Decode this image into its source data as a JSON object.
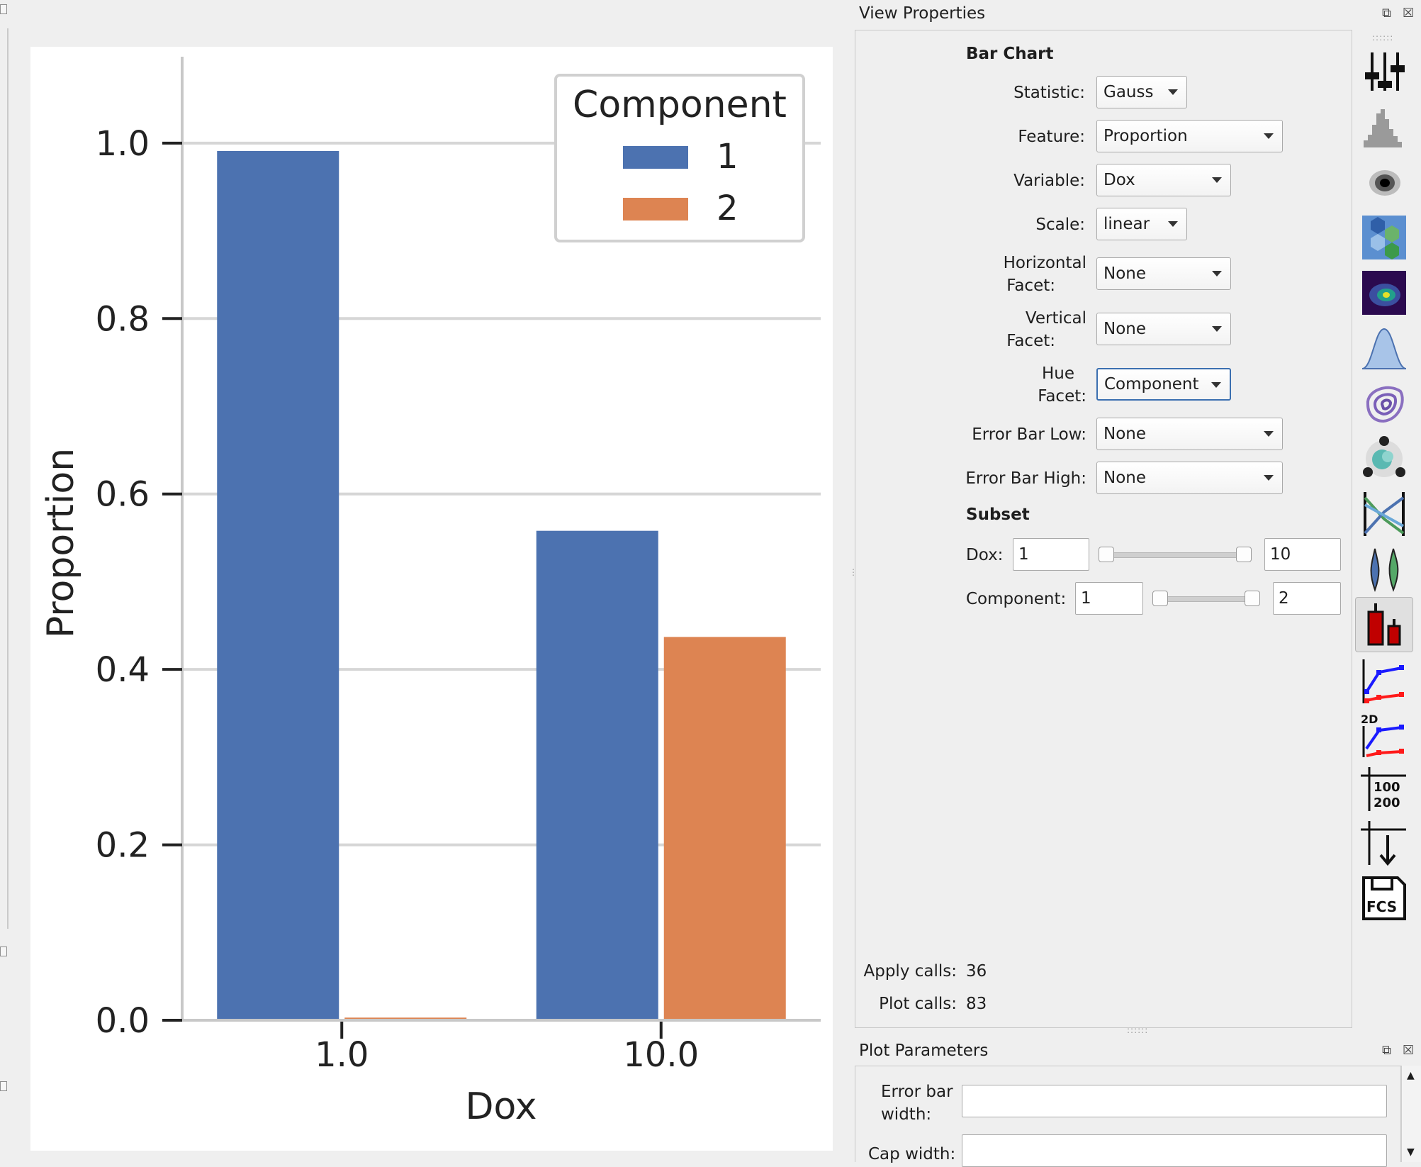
{
  "chart_data": {
    "type": "bar",
    "xlabel": "Dox",
    "ylabel": "Proportion",
    "categories": [
      "1.0",
      "10.0"
    ],
    "series": [
      {
        "name": "1",
        "color": "#4c72b0",
        "values": [
          0.991,
          0.558
        ]
      },
      {
        "name": "2",
        "color": "#dd8452",
        "values": [
          0.003,
          0.437
        ]
      }
    ],
    "ylim": [
      0,
      1.05
    ],
    "yticks": [
      "0.0",
      "0.2",
      "0.4",
      "0.6",
      "0.8",
      "1.0"
    ],
    "ytick_values": [
      0,
      0.2,
      0.4,
      0.6,
      0.8,
      1.0
    ],
    "grid": true,
    "legend": {
      "title": "Component",
      "placement": "top-right"
    }
  },
  "view_properties": {
    "title": "View Properties",
    "section_bar_chart": "Bar Chart",
    "statistic": {
      "label": "Statistic:",
      "value": "Gauss"
    },
    "feature": {
      "label": "Feature:",
      "value": "Proportion"
    },
    "variable": {
      "label": "Variable:",
      "value": "Dox"
    },
    "scale": {
      "label": "Scale:",
      "value": "linear"
    },
    "horizontal_facet": {
      "label1": "Horizontal",
      "label2": "Facet:",
      "value": "None"
    },
    "vertical_facet": {
      "label1": "Vertical",
      "label2": "Facet:",
      "value": "None"
    },
    "hue_facet": {
      "label1": "Hue",
      "label2": "Facet:",
      "value": "Component"
    },
    "error_bar_low": {
      "label": "Error Bar Low:",
      "value": "None"
    },
    "error_bar_high": {
      "label": "Error Bar High:",
      "value": "None"
    },
    "section_subset": "Subset",
    "subset_dox": {
      "label": "Dox:",
      "min": "1",
      "max": "10"
    },
    "subset_component": {
      "label": "Component:",
      "min": "1",
      "max": "2"
    },
    "apply_calls": {
      "label": "Apply calls:",
      "value": "36"
    },
    "plot_calls": {
      "label": "Plot calls:",
      "value": "83"
    }
  },
  "toolbar": {
    "icons": [
      "threshold-icon",
      "histogram-icon",
      "scatterplot-icon",
      "hexbin-icon",
      "density-2d-icon",
      "kde-1d-icon",
      "kde-2d-icon",
      "cluster-icon",
      "parallel-coordinates-icon",
      "violin-icon",
      "bar-chart-icon",
      "stats-1d-icon",
      "stats-2d-icon",
      "table-icon",
      "export-icon",
      "export-fcs-icon"
    ],
    "table_text_top": "100",
    "table_text_bottom": "200",
    "stats2d_text": "2D",
    "fcs_text": "FCS"
  },
  "plot_parameters": {
    "title": "Plot Parameters",
    "error_bar_width": {
      "label1": "Error bar",
      "label2": "width:",
      "value": ""
    },
    "cap_width": {
      "label": "Cap width:",
      "value": ""
    }
  },
  "colors": {
    "bar_blue": "#4c72b0",
    "bar_orange": "#dd8452",
    "focus": "#3b6fb0",
    "tool_red": "#c00000"
  }
}
